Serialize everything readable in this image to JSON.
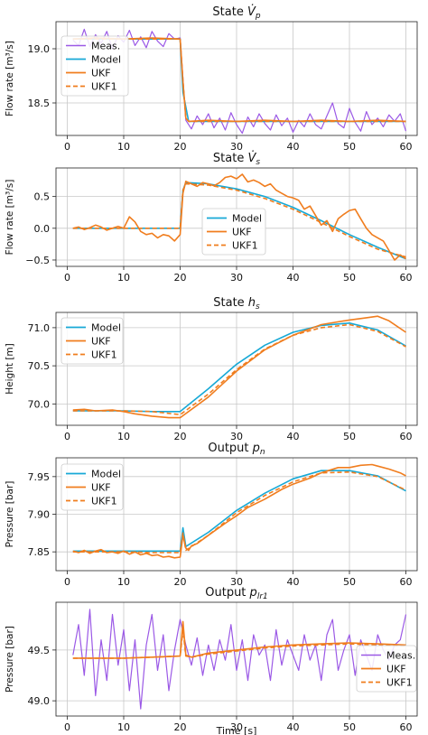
{
  "colors": {
    "meas": "#9b59e6",
    "model": "#17a9d6",
    "ukf": "#f07d1e",
    "ukf1": "#f07d1e"
  },
  "x_axis": {
    "label": "Time [s]",
    "ticks": [
      0,
      10,
      20,
      30,
      40,
      50,
      60
    ],
    "lim": [
      -2,
      62
    ]
  },
  "chart_data": [
    {
      "type": "line",
      "title": "State V̇p",
      "ylabel": "Flow rate [m³/s]",
      "ylim": [
        18.2,
        19.25
      ],
      "yticks": [
        18.5,
        19.0
      ],
      "ytick_labels": [
        "18.5",
        "19.0"
      ],
      "grid": true,
      "legend": {
        "placement": "middle-left",
        "entries": [
          "Meas.",
          "Model",
          "UKF",
          "UKF1"
        ]
      },
      "series": [
        {
          "name": "Meas.",
          "style": "meas",
          "x": [
            1,
            2,
            3,
            4,
            5,
            6,
            7,
            8,
            9,
            10,
            11,
            12,
            13,
            14,
            15,
            16,
            17,
            18,
            19,
            20,
            21,
            22,
            23,
            24,
            25,
            26,
            27,
            28,
            29,
            30,
            31,
            32,
            33,
            34,
            35,
            36,
            37,
            38,
            39,
            40,
            41,
            42,
            43,
            44,
            45,
            46,
            47,
            48,
            49,
            50,
            51,
            52,
            53,
            54,
            55,
            56,
            57,
            58,
            59,
            60
          ],
          "y": [
            19.08,
            19.03,
            19.18,
            19.02,
            19.13,
            19.05,
            19.16,
            19.0,
            19.12,
            19.06,
            19.17,
            19.03,
            19.11,
            19.01,
            19.16,
            19.07,
            19.02,
            19.14,
            19.09,
            19.1,
            18.34,
            18.26,
            18.38,
            18.3,
            18.4,
            18.27,
            18.36,
            18.25,
            18.41,
            18.3,
            18.22,
            18.37,
            18.28,
            18.4,
            18.31,
            18.25,
            18.39,
            18.29,
            18.36,
            18.23,
            18.34,
            18.28,
            18.4,
            18.3,
            18.26,
            18.38,
            18.5,
            18.31,
            18.27,
            18.45,
            18.32,
            18.24,
            18.42,
            18.3,
            18.36,
            18.28,
            18.39,
            18.33,
            18.4,
            18.24
          ]
        },
        {
          "name": "Model",
          "style": "model",
          "x": [
            1,
            20,
            20.5,
            21.5,
            60
          ],
          "y": [
            19.09,
            19.09,
            18.6,
            18.33,
            18.33
          ]
        },
        {
          "name": "UKF",
          "style": "ukf",
          "x": [
            1,
            5,
            10,
            15,
            20,
            20.5,
            21,
            21.5,
            25,
            30,
            35,
            40,
            45,
            50,
            55,
            60
          ],
          "y": [
            19.09,
            19.1,
            19.09,
            19.1,
            19.09,
            18.7,
            18.36,
            18.33,
            18.34,
            18.33,
            18.34,
            18.33,
            18.34,
            18.33,
            18.34,
            18.33
          ]
        },
        {
          "name": "UKF1",
          "style": "ukf1",
          "x": [
            1,
            20,
            20.5,
            21,
            21.5,
            60
          ],
          "y": [
            19.09,
            19.09,
            18.7,
            18.36,
            18.33,
            18.33
          ]
        }
      ]
    },
    {
      "type": "line",
      "title": "State V̇s",
      "ylabel": "Flow rate [m³/s]",
      "ylim": [
        -0.6,
        0.95
      ],
      "yticks": [
        -0.5,
        0.0,
        0.5
      ],
      "ytick_labels": [
        "−0.5",
        "0.0",
        "0.5"
      ],
      "grid": true,
      "legend": {
        "placement": "center-right",
        "entries": [
          "Model",
          "UKF",
          "UKF1"
        ]
      },
      "series": [
        {
          "name": "Model",
          "style": "model",
          "x": [
            1,
            5,
            10,
            15,
            20,
            20.5,
            21,
            25,
            30,
            35,
            40,
            45,
            50,
            55,
            60
          ],
          "y": [
            0,
            0,
            0,
            0,
            0,
            0.6,
            0.72,
            0.7,
            0.62,
            0.5,
            0.33,
            0.12,
            -0.1,
            -0.3,
            -0.48
          ]
        },
        {
          "name": "UKF",
          "style": "ukf",
          "x": [
            1,
            2,
            3,
            4,
            5,
            6,
            7,
            8,
            9,
            10,
            11,
            12,
            13,
            14,
            15,
            16,
            17,
            18,
            19,
            20,
            20.5,
            21,
            22,
            23,
            24,
            25,
            26,
            27,
            28,
            29,
            30,
            31,
            32,
            33,
            34,
            35,
            36,
            37,
            38,
            39,
            40,
            41,
            42,
            43,
            44,
            45,
            46,
            47,
            48,
            49,
            50,
            51,
            52,
            53,
            54,
            55,
            56,
            57,
            58,
            59,
            60
          ],
          "y": [
            0.0,
            0.02,
            -0.02,
            0.01,
            0.05,
            0.02,
            -0.03,
            0.0,
            0.03,
            0.0,
            0.18,
            0.1,
            -0.05,
            -0.1,
            -0.08,
            -0.15,
            -0.1,
            -0.12,
            -0.2,
            -0.1,
            0.55,
            0.74,
            0.7,
            0.66,
            0.72,
            0.7,
            0.67,
            0.72,
            0.8,
            0.82,
            0.78,
            0.85,
            0.73,
            0.76,
            0.72,
            0.66,
            0.7,
            0.6,
            0.55,
            0.5,
            0.48,
            0.44,
            0.3,
            0.35,
            0.2,
            0.05,
            0.12,
            -0.05,
            0.15,
            0.22,
            0.28,
            0.3,
            0.15,
            0.0,
            -0.1,
            -0.15,
            -0.2,
            -0.35,
            -0.5,
            -0.42,
            -0.48
          ]
        },
        {
          "name": "UKF1",
          "style": "ukf1",
          "x": [
            1,
            5,
            10,
            15,
            20,
            20.5,
            21,
            25,
            30,
            35,
            40,
            45,
            50,
            55,
            60
          ],
          "y": [
            0,
            0,
            0,
            0,
            0,
            0.6,
            0.7,
            0.68,
            0.6,
            0.47,
            0.3,
            0.09,
            -0.13,
            -0.33,
            -0.45
          ]
        }
      ]
    },
    {
      "type": "line",
      "title": "State hs",
      "ylabel": "Height [m]",
      "ylim": [
        69.72,
        71.2
      ],
      "yticks": [
        70.0,
        70.5,
        71.0
      ],
      "ytick_labels": [
        "70.0",
        "70.5",
        "71.0"
      ],
      "grid": true,
      "legend": {
        "placement": "upper-left",
        "entries": [
          "Model",
          "UKF",
          "UKF1"
        ]
      },
      "series": [
        {
          "name": "Model",
          "style": "model",
          "x": [
            1,
            5,
            10,
            15,
            20,
            25,
            30,
            35,
            40,
            45,
            50,
            55,
            60
          ],
          "y": [
            69.91,
            69.91,
            69.91,
            69.9,
            69.9,
            70.2,
            70.52,
            70.77,
            70.94,
            71.03,
            71.06,
            70.97,
            70.76
          ]
        },
        {
          "name": "UKF",
          "style": "ukf",
          "x": [
            1,
            3,
            5,
            8,
            10,
            12,
            15,
            18,
            20,
            25,
            30,
            35,
            40,
            45,
            50,
            53,
            55,
            57,
            60
          ],
          "y": [
            69.92,
            69.93,
            69.91,
            69.92,
            69.9,
            69.87,
            69.84,
            69.82,
            69.82,
            70.09,
            70.43,
            70.71,
            70.9,
            71.04,
            71.1,
            71.13,
            71.15,
            71.09,
            70.94
          ]
        },
        {
          "name": "UKF1",
          "style": "ukf1",
          "x": [
            1,
            5,
            10,
            15,
            20,
            25,
            30,
            35,
            40,
            45,
            50,
            55,
            60
          ],
          "y": [
            69.91,
            69.91,
            69.91,
            69.9,
            69.86,
            70.13,
            70.45,
            70.72,
            70.9,
            71.0,
            71.04,
            70.95,
            70.75
          ]
        }
      ]
    },
    {
      "type": "line",
      "title": "Output pn",
      "ylabel": "Pressure [bar]",
      "ylim": [
        7.825,
        7.975
      ],
      "yticks": [
        7.85,
        7.9,
        7.95
      ],
      "ytick_labels": [
        "7.85",
        "7.90",
        "7.95"
      ],
      "grid": true,
      "legend": {
        "placement": "upper-left",
        "entries": [
          "Model",
          "UKF",
          "UKF1"
        ]
      },
      "series": [
        {
          "name": "Model",
          "style": "model",
          "x": [
            1,
            5,
            10,
            15,
            20,
            20.5,
            21,
            25,
            30,
            35,
            40,
            45,
            50,
            55,
            60
          ],
          "y": [
            7.851,
            7.851,
            7.851,
            7.851,
            7.851,
            7.882,
            7.857,
            7.876,
            7.905,
            7.928,
            7.947,
            7.958,
            7.958,
            7.951,
            7.931
          ]
        },
        {
          "name": "UKF",
          "style": "ukf",
          "x": [
            1,
            2,
            3,
            4,
            5,
            6,
            7,
            8,
            9,
            10,
            11,
            12,
            13,
            14,
            15,
            16,
            17,
            18,
            19,
            20,
            20.5,
            21,
            21.5,
            22,
            23,
            25,
            28,
            30,
            32,
            35,
            38,
            40,
            43,
            45,
            48,
            50,
            52,
            54,
            55,
            57,
            59,
            60
          ],
          "y": [
            7.851,
            7.849,
            7.852,
            7.848,
            7.851,
            7.853,
            7.849,
            7.85,
            7.848,
            7.851,
            7.847,
            7.85,
            7.846,
            7.848,
            7.845,
            7.846,
            7.843,
            7.844,
            7.842,
            7.843,
            7.872,
            7.855,
            7.852,
            7.858,
            7.861,
            7.872,
            7.888,
            7.898,
            7.909,
            7.92,
            7.933,
            7.94,
            7.948,
            7.955,
            7.962,
            7.962,
            7.965,
            7.966,
            7.964,
            7.96,
            7.955,
            7.951
          ]
        },
        {
          "name": "UKF1",
          "style": "ukf1",
          "x": [
            1,
            5,
            10,
            15,
            20,
            20.5,
            21,
            25,
            30,
            35,
            40,
            45,
            50,
            55,
            60
          ],
          "y": [
            7.85,
            7.85,
            7.85,
            7.849,
            7.849,
            7.875,
            7.852,
            7.872,
            7.902,
            7.925,
            7.943,
            7.955,
            7.956,
            7.95,
            7.932
          ]
        }
      ]
    },
    {
      "type": "line",
      "title": "Output plr1",
      "ylabel": "Pressure [bar]",
      "xlabel": "Time [s]",
      "ylim": [
        48.85,
        49.97
      ],
      "yticks": [
        49.0,
        49.5
      ],
      "ytick_labels": [
        "49.0",
        "49.5"
      ],
      "grid": true,
      "legend": {
        "placement": "lower-right",
        "entries": [
          "Meas.",
          "UKF",
          "UKF1"
        ]
      },
      "series": [
        {
          "name": "Meas.",
          "style": "meas",
          "x": [
            1,
            2,
            3,
            4,
            5,
            6,
            7,
            8,
            9,
            10,
            11,
            12,
            13,
            14,
            15,
            16,
            17,
            18,
            19,
            20,
            21,
            22,
            23,
            24,
            25,
            26,
            27,
            28,
            29,
            30,
            31,
            32,
            33,
            34,
            35,
            36,
            37,
            38,
            39,
            40,
            41,
            42,
            43,
            44,
            45,
            46,
            47,
            48,
            49,
            50,
            51,
            52,
            53,
            54,
            55,
            56,
            57,
            58,
            59,
            60
          ],
          "y": [
            49.45,
            49.75,
            49.25,
            49.9,
            49.05,
            49.6,
            49.2,
            49.85,
            49.35,
            49.7,
            49.1,
            49.6,
            48.92,
            49.55,
            49.85,
            49.3,
            49.65,
            49.1,
            49.5,
            49.8,
            49.55,
            49.35,
            49.62,
            49.25,
            49.55,
            49.3,
            49.6,
            49.4,
            49.75,
            49.3,
            49.6,
            49.2,
            49.65,
            49.45,
            49.55,
            49.2,
            49.7,
            49.35,
            49.6,
            49.45,
            49.3,
            49.65,
            49.4,
            49.55,
            49.2,
            49.65,
            49.8,
            49.3,
            49.5,
            49.65,
            49.25,
            49.6,
            49.45,
            49.3,
            49.65,
            49.5,
            49.4,
            49.55,
            49.6,
            49.85
          ]
        },
        {
          "name": "UKF",
          "style": "ukf",
          "x": [
            1,
            5,
            10,
            15,
            20,
            20.5,
            21,
            22,
            25,
            30,
            35,
            40,
            45,
            50,
            55,
            60
          ],
          "y": [
            49.42,
            49.42,
            49.42,
            49.43,
            49.44,
            49.78,
            49.45,
            49.43,
            49.47,
            49.5,
            49.53,
            49.55,
            49.56,
            49.57,
            49.56,
            49.55
          ]
        },
        {
          "name": "UKF1",
          "style": "ukf1",
          "x": [
            1,
            5,
            10,
            15,
            20,
            20.5,
            21,
            22,
            25,
            30,
            35,
            40,
            45,
            50,
            55,
            60
          ],
          "y": [
            49.42,
            49.42,
            49.42,
            49.43,
            49.44,
            49.7,
            49.44,
            49.43,
            49.46,
            49.49,
            49.52,
            49.54,
            49.55,
            49.56,
            49.55,
            49.54
          ]
        }
      ]
    }
  ]
}
